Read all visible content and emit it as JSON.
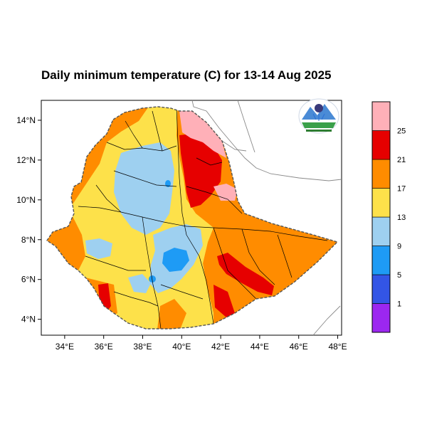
{
  "title": "Daily minimum temperature (C) for 13-14 Aug 2025",
  "map": {
    "lat_labels": [
      "14°N",
      "12°N",
      "10°N",
      "8°N",
      "6°N",
      "4°N"
    ],
    "lat_values": [
      14,
      12,
      10,
      8,
      6,
      4
    ],
    "lon_labels": [
      "34°E",
      "36°E",
      "38°E",
      "40°E",
      "42°E",
      "44°E",
      "46°E",
      "48°E"
    ],
    "lon_values": [
      34,
      36,
      38,
      40,
      42,
      44,
      46,
      48
    ],
    "lon_range": [
      32.8,
      48.2
    ],
    "lat_range": [
      3.2,
      15.0
    ]
  },
  "colorbar": {
    "bins": [
      {
        "color": "#9c27f0"
      },
      {
        "color": "#3355e6"
      },
      {
        "color": "#1e9bf5"
      },
      {
        "color": "#9ed0f0"
      },
      {
        "color": "#fde14a"
      },
      {
        "color": "#ff8c00"
      },
      {
        "color": "#e60000"
      },
      {
        "color": "#ffb0b8"
      }
    ],
    "labels": [
      "1",
      "5",
      "9",
      "13",
      "17",
      "21",
      "25"
    ]
  },
  "logo": {
    "name": "ethiopian-meteorology-institute-logo"
  }
}
